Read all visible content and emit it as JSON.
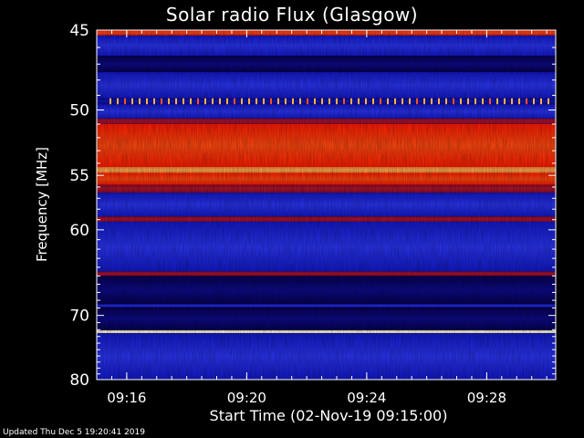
{
  "colors": {
    "background": "#000000",
    "text": "#ffffff",
    "low": "#05005a",
    "mid": "#1a22e6",
    "high": "#ff2a00",
    "peak": "#ffffb0"
  },
  "chart_data": {
    "type": "heatmap",
    "title": "Solar radio Flux (Glasgow)",
    "ylabel": "Frequency [MHz]",
    "xlabel": "Start Time (02-Nov-19 09:15:00)",
    "footer": "Updated Thu Dec  5 19:20:41 2019",
    "x_ticks": [
      "09:16",
      "09:20",
      "09:24",
      "09:28"
    ],
    "x_tick_minutes": [
      1,
      5,
      9,
      13
    ],
    "xlim_minutes": [
      0.0,
      15.3
    ],
    "y_ticks": [
      "45",
      "50",
      "55",
      "60",
      "70",
      "80"
    ],
    "y_tick_values": [
      45,
      50,
      55,
      60,
      70,
      80
    ],
    "ylim": [
      45,
      80
    ],
    "y_scale": "reciprocal",
    "bands": [
      {
        "f0": 45.0,
        "f1": 45.3,
        "level": "high"
      },
      {
        "f0": 45.3,
        "f1": 46.5,
        "level": "mid"
      },
      {
        "f0": 46.5,
        "f1": 47.5,
        "level": "low"
      },
      {
        "f0": 47.5,
        "f1": 49.2,
        "level": "mid"
      },
      {
        "f0": 49.2,
        "f1": 49.6,
        "level": "dotted"
      },
      {
        "f0": 49.6,
        "f1": 50.6,
        "level": "mid"
      },
      {
        "f0": 50.6,
        "f1": 51.0,
        "level": "darkred"
      },
      {
        "f0": 51.0,
        "f1": 54.3,
        "level": "high"
      },
      {
        "f0": 54.3,
        "f1": 54.8,
        "level": "orange"
      },
      {
        "f0": 54.8,
        "f1": 55.8,
        "level": "high"
      },
      {
        "f0": 55.8,
        "f1": 56.5,
        "level": "darkred"
      },
      {
        "f0": 56.5,
        "f1": 58.7,
        "level": "mid"
      },
      {
        "f0": 58.7,
        "f1": 59.2,
        "level": "darkred"
      },
      {
        "f0": 59.2,
        "f1": 64.5,
        "level": "mid"
      },
      {
        "f0": 64.5,
        "f1": 65.0,
        "level": "darkred"
      },
      {
        "f0": 65.0,
        "f1": 68.5,
        "level": "low"
      },
      {
        "f0": 68.5,
        "f1": 68.9,
        "level": "mid"
      },
      {
        "f0": 68.9,
        "f1": 72.1,
        "level": "low"
      },
      {
        "f0": 72.1,
        "f1": 72.5,
        "level": "peak"
      },
      {
        "f0": 72.5,
        "f1": 80.0,
        "level": "mid"
      }
    ],
    "grid": false,
    "legend": "none"
  }
}
